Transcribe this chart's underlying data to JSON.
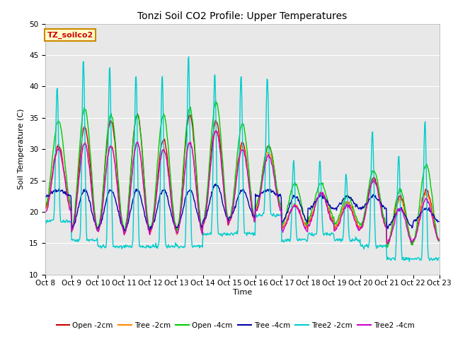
{
  "title": "Tonzi Soil CO2 Profile: Upper Temperatures",
  "xlabel": "Time",
  "ylabel": "Soil Temperature (C)",
  "ylim": [
    10,
    50
  ],
  "plot_bg_color": "#e8e8e8",
  "ytick_values": [
    10,
    15,
    20,
    25,
    30,
    35,
    40,
    45,
    50
  ],
  "xtick_labels": [
    "Oct 8",
    "Oct 9",
    "Oct 10",
    "Oct 11",
    "Oct 12",
    "Oct 13",
    "Oct 14",
    "Oct 15",
    "Oct 16",
    "Oct 17",
    "Oct 18",
    "Oct 19",
    "Oct 20",
    "Oct 21",
    "Oct 22",
    "Oct 23"
  ],
  "series": [
    {
      "label": "Open -2cm",
      "color": "#cc0000"
    },
    {
      "label": "Tree -2cm",
      "color": "#ff8800"
    },
    {
      "label": "Open -4cm",
      "color": "#00cc00"
    },
    {
      "label": "Tree -4cm",
      "color": "#0000aa"
    },
    {
      "label": "Tree2 -2cm",
      "color": "#00cccc"
    },
    {
      "label": "Tree2 -4cm",
      "color": "#cc00cc"
    }
  ],
  "annotation_text": "TZ_soilco2",
  "n_days": 15,
  "pts_per_day": 48,
  "night_open2": [
    20.5,
    17.0,
    17.0,
    16.5,
    17.0,
    16.5,
    18.0,
    18.5,
    20.5,
    17.5,
    18.5,
    17.5,
    17.5,
    15.0,
    15.5
  ],
  "peak_open2": [
    30.5,
    33.5,
    34.5,
    35.5,
    31.5,
    35.5,
    34.5,
    31.0,
    30.5,
    21.0,
    23.0,
    21.5,
    25.5,
    22.5,
    23.5
  ],
  "night_tree2": [
    20.5,
    17.0,
    17.0,
    16.5,
    17.0,
    16.5,
    18.0,
    18.5,
    20.5,
    17.5,
    18.5,
    17.5,
    17.5,
    15.0,
    15.5
  ],
  "peak_tree2": [
    30.0,
    31.0,
    30.5,
    31.0,
    30.0,
    31.0,
    33.0,
    30.5,
    29.5,
    21.0,
    23.0,
    21.5,
    25.0,
    22.0,
    23.0
  ],
  "night_open4": [
    21.0,
    17.5,
    17.5,
    17.0,
    17.5,
    17.0,
    18.5,
    19.0,
    21.0,
    18.0,
    19.0,
    18.0,
    18.0,
    14.5,
    15.5
  ],
  "peak_open4": [
    34.5,
    36.5,
    35.5,
    35.5,
    35.5,
    36.5,
    37.5,
    34.0,
    30.5,
    24.5,
    24.5,
    22.5,
    26.5,
    23.5,
    27.5
  ],
  "night_tree4": [
    22.5,
    17.5,
    17.5,
    17.0,
    17.5,
    17.5,
    18.5,
    19.0,
    22.5,
    18.5,
    20.5,
    20.5,
    20.5,
    17.5,
    18.5
  ],
  "peak_tree4": [
    23.5,
    23.5,
    23.5,
    23.5,
    23.5,
    23.5,
    24.5,
    23.5,
    23.5,
    22.5,
    22.5,
    22.5,
    22.5,
    20.5,
    20.5
  ],
  "night_cyan2": [
    18.5,
    15.5,
    14.5,
    14.5,
    14.5,
    14.5,
    16.5,
    16.5,
    19.5,
    15.5,
    16.5,
    15.5,
    14.5,
    12.5,
    12.5
  ],
  "peak_cyan2": [
    40.0,
    44.5,
    43.5,
    42.0,
    42.0,
    45.0,
    42.0,
    42.0,
    41.5,
    28.0,
    28.0,
    26.0,
    33.0,
    29.0,
    34.5
  ],
  "night_cyan4": [
    20.0,
    17.0,
    17.0,
    16.5,
    17.0,
    16.5,
    18.0,
    18.5,
    20.0,
    17.0,
    18.0,
    17.0,
    17.5,
    15.0,
    15.5
  ],
  "peak_cyan4": [
    30.0,
    31.0,
    30.5,
    31.0,
    30.0,
    31.0,
    33.0,
    30.0,
    29.0,
    21.0,
    23.0,
    21.0,
    25.0,
    20.5,
    22.0
  ]
}
